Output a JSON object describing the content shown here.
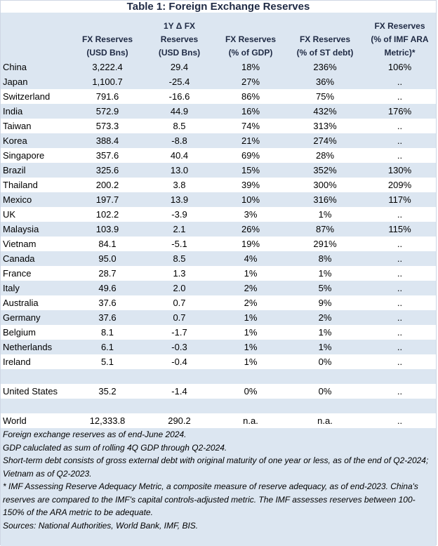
{
  "title": "Table 1: Foreign Exchange Reserves",
  "headers": {
    "col1": [
      "FX Reserves",
      "(USD Bns)"
    ],
    "col2": [
      "1Y Δ FX",
      "Reserves",
      "(USD Bns)"
    ],
    "col3": [
      "FX Reserves",
      "(% of GDP)"
    ],
    "col4": [
      "FX Reserves",
      "(% of ST debt)"
    ],
    "col5": [
      "FX Reserves",
      "(% of IMF ARA",
      "Metric)*"
    ]
  },
  "rows": [
    {
      "country": "China",
      "reserves": "3,222.4",
      "change": "29.4",
      "gdp": "18%",
      "st_debt": "236%",
      "ara": "106%",
      "band": true
    },
    {
      "country": "Japan",
      "reserves": "1,100.7",
      "change": "-25.4",
      "gdp": "27%",
      "st_debt": "36%",
      "ara": "..",
      "band": true
    },
    {
      "country": "Switzerland",
      "reserves": "791.6",
      "change": "-16.6",
      "gdp": "86%",
      "st_debt": "75%",
      "ara": "..",
      "band": false
    },
    {
      "country": "India",
      "reserves": "572.9",
      "change": "44.9",
      "gdp": "16%",
      "st_debt": "432%",
      "ara": "176%",
      "band": true
    },
    {
      "country": "Taiwan",
      "reserves": "573.3",
      "change": "8.5",
      "gdp": "74%",
      "st_debt": "313%",
      "ara": "..",
      "band": false
    },
    {
      "country": "Korea",
      "reserves": "388.4",
      "change": "-8.8",
      "gdp": "21%",
      "st_debt": "274%",
      "ara": "..",
      "band": true
    },
    {
      "country": "Singapore",
      "reserves": "357.6",
      "change": "40.4",
      "gdp": "69%",
      "st_debt": "28%",
      "ara": "..",
      "band": false
    },
    {
      "country": "Brazil",
      "reserves": "325.6",
      "change": "13.0",
      "gdp": "15%",
      "st_debt": "352%",
      "ara": "130%",
      "band": true
    },
    {
      "country": "Thailand",
      "reserves": "200.2",
      "change": "3.8",
      "gdp": "39%",
      "st_debt": "300%",
      "ara": "209%",
      "band": false
    },
    {
      "country": "Mexico",
      "reserves": "197.7",
      "change": "13.9",
      "gdp": "10%",
      "st_debt": "316%",
      "ara": "117%",
      "band": true
    },
    {
      "country": "UK",
      "reserves": "102.2",
      "change": "-3.9",
      "gdp": "3%",
      "st_debt": "1%",
      "ara": "..",
      "band": false
    },
    {
      "country": "Malaysia",
      "reserves": "103.9",
      "change": "2.1",
      "gdp": "26%",
      "st_debt": "87%",
      "ara": "115%",
      "band": true
    },
    {
      "country": "Vietnam",
      "reserves": "84.1",
      "change": "-5.1",
      "gdp": "19%",
      "st_debt": "291%",
      "ara": "..",
      "band": false
    },
    {
      "country": "Canada",
      "reserves": "95.0",
      "change": "8.5",
      "gdp": "4%",
      "st_debt": "8%",
      "ara": "..",
      "band": true
    },
    {
      "country": "France",
      "reserves": "28.7",
      "change": "1.3",
      "gdp": "1%",
      "st_debt": "1%",
      "ara": "..",
      "band": false
    },
    {
      "country": "Italy",
      "reserves": "49.6",
      "change": "2.0",
      "gdp": "2%",
      "st_debt": "5%",
      "ara": "..",
      "band": true
    },
    {
      "country": "Australia",
      "reserves": "37.6",
      "change": "0.7",
      "gdp": "2%",
      "st_debt": "9%",
      "ara": "..",
      "band": false
    },
    {
      "country": "Germany",
      "reserves": "37.6",
      "change": "0.7",
      "gdp": "1%",
      "st_debt": "2%",
      "ara": "..",
      "band": true
    },
    {
      "country": "Belgium",
      "reserves": "8.1",
      "change": "-1.7",
      "gdp": "1%",
      "st_debt": "1%",
      "ara": "..",
      "band": false
    },
    {
      "country": "Netherlands",
      "reserves": "6.1",
      "change": "-0.3",
      "gdp": "1%",
      "st_debt": "1%",
      "ara": "..",
      "band": true
    },
    {
      "country": "Ireland",
      "reserves": "5.1",
      "change": "-0.4",
      "gdp": "1%",
      "st_debt": "0%",
      "ara": "..",
      "band": false
    }
  ],
  "us_row": {
    "country": "United States",
    "reserves": "35.2",
    "change": "-1.4",
    "gdp": "0%",
    "st_debt": "0%",
    "ara": ".."
  },
  "world_row": {
    "country": "World",
    "reserves": "12,333.8",
    "change": "290.2",
    "gdp": "n.a.",
    "st_debt": "n.a.",
    "ara": ".."
  },
  "notes": [
    "Foreign exchange reserves as of end-June 2024.",
    "GDP caluclated as sum of rolling 4Q GDP through Q2-2024.",
    "Short-term debt consists of gross external debt with original maturity of one year or less, as of the end of Q2-2024; Vietnam as of Q2-2023.",
    "* IMF Assessing Reserve Adequacy Metric, a composite measure of reserve adequacy, as of end-2023.  China's reserves are compared to the IMF's capital controls-adjusted metric.  The IMF assesses reserves between 100-150% of the ARA metric to be adequate.",
    "Sources: National Authorities, World Bank, IMF, BIS."
  ]
}
